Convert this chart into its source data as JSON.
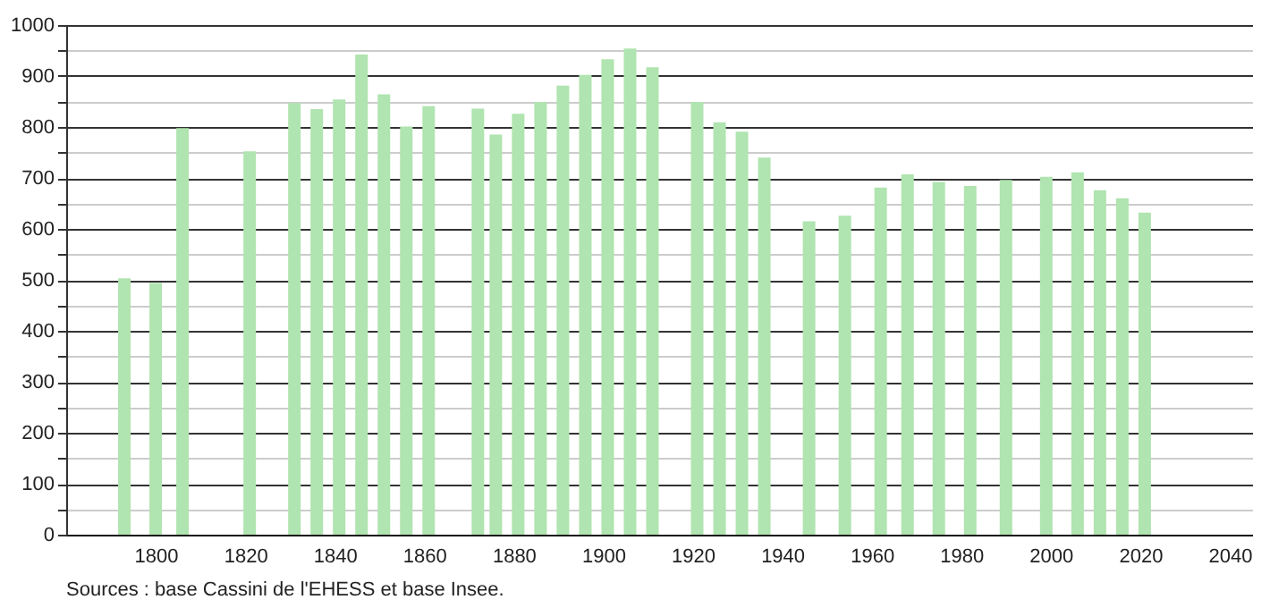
{
  "chart_data": {
    "type": "bar",
    "x": [
      1793,
      1800,
      1806,
      1821,
      1831,
      1836,
      1841,
      1846,
      1851,
      1856,
      1861,
      1872,
      1876,
      1881,
      1886,
      1891,
      1896,
      1901,
      1906,
      1911,
      1921,
      1926,
      1931,
      1936,
      1946,
      1954,
      1962,
      1968,
      1975,
      1982,
      1990,
      1999,
      2006,
      2011,
      2016,
      2021
    ],
    "values": [
      503,
      494,
      798,
      752,
      847,
      835,
      854,
      942,
      864,
      801,
      841,
      836,
      785,
      826,
      849,
      881,
      902,
      933,
      954,
      917,
      849,
      809,
      791,
      740,
      615,
      626,
      681,
      707,
      692,
      684,
      696,
      702,
      711,
      676,
      660,
      632
    ],
    "color": "#b0e4b0",
    "xlim": [
      1780,
      2045
    ],
    "xticks": [
      1800,
      1820,
      1840,
      1860,
      1880,
      1900,
      1920,
      1940,
      1960,
      1980,
      2000,
      2020,
      2040
    ],
    "ylim": [
      0,
      1000
    ],
    "yticks": [
      0,
      {
        "value": 50,
        "label": null
      },
      100,
      {
        "value": 150,
        "label": null
      },
      200,
      {
        "value": 250,
        "label": null
      },
      300,
      {
        "value": 350,
        "label": null
      },
      400,
      {
        "value": 450,
        "label": null
      },
      500,
      {
        "value": 550,
        "label": null
      },
      600,
      {
        "value": 650,
        "label": null
      },
      700,
      {
        "value": 750,
        "label": null
      },
      800,
      {
        "value": 850,
        "label": null
      },
      900,
      {
        "value": 950,
        "label": null
      },
      1000
    ],
    "grid": "y",
    "annotations": [
      "Sources : base Cassini de l'EHESS et base Insee."
    ]
  }
}
